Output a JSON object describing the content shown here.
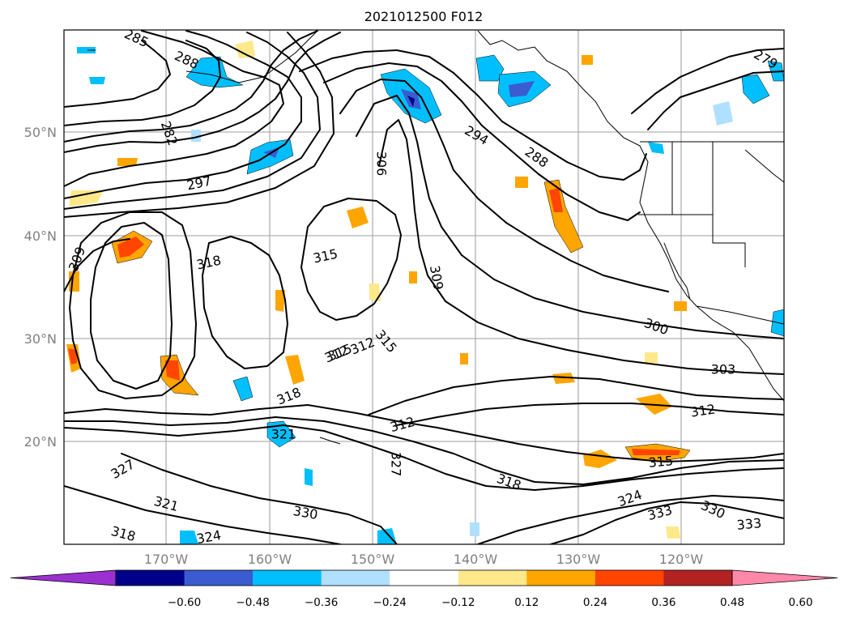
{
  "title": "2021012500 F012",
  "map": {
    "lat_labels": [
      "50°N",
      "40°N",
      "30°N",
      "20°N"
    ],
    "lon_labels": [
      "170°W",
      "160°W",
      "150°W",
      "140°W",
      "130°W",
      "120°W"
    ],
    "grid": true
  },
  "colorbar": {
    "ticks": [
      "−0.60",
      "−0.48",
      "−0.36",
      "−0.24",
      "−0.12",
      "0.12",
      "0.24",
      "0.36",
      "0.48",
      "0.60"
    ],
    "colors": [
      "#9b30d0",
      "#00008b",
      "#3a5cd0",
      "#00bfff",
      "#b0e0ff",
      "#ffffff",
      "#ffe88a",
      "#ffa500",
      "#ff4500",
      "#b22222",
      "#ff88aa"
    ]
  },
  "contour_labels": [
    "285",
    "288",
    "282",
    "297",
    "309",
    "318",
    "315",
    "306",
    "294",
    "288",
    "279",
    "309",
    "300",
    "303",
    "312",
    "318",
    "312",
    "315",
    "327",
    "327",
    "321",
    "318",
    "324",
    "330",
    "318",
    "315",
    "312",
    "324",
    "333",
    "330",
    "333",
    "315",
    "312",
    "321"
  ]
}
